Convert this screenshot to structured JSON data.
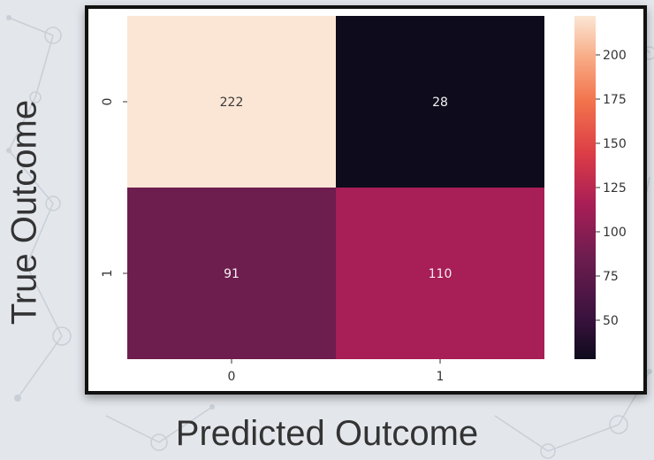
{
  "figure": {
    "ylabel": "True Outcome",
    "xlabel": "Predicted Outcome"
  },
  "chart_data": {
    "type": "heatmap",
    "x_categories": [
      "0",
      "1"
    ],
    "y_categories": [
      "0",
      "1"
    ],
    "values": [
      [
        222,
        28
      ],
      [
        91,
        110
      ]
    ],
    "colorbar": {
      "ticks": [
        200,
        175,
        150,
        125,
        100,
        75,
        50
      ],
      "range": [
        28,
        222
      ]
    },
    "colors": {
      "cell_highest": "#fbe6d5",
      "cell_lowest": "#0e0b1c",
      "cell_0_1": "#0e0b1c",
      "cell_1_0": "#6e1d4f",
      "cell_1_1": "#a81e56",
      "annotation_light_bg": "#3a3a3a",
      "annotation_dark_bg": "#f2f2f2"
    }
  }
}
